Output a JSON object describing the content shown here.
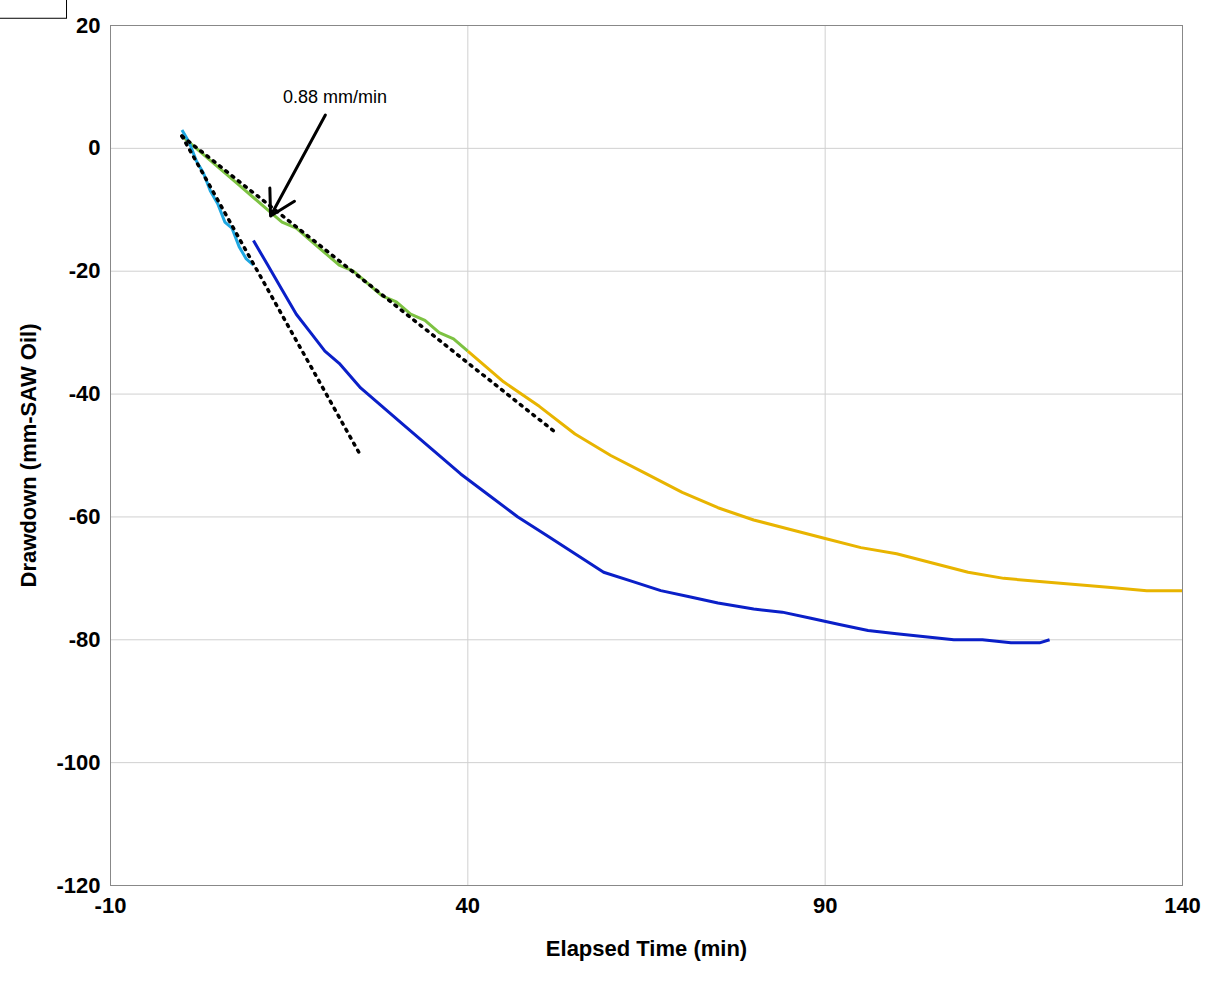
{
  "chart_data": {
    "type": "line",
    "x_label": "Elapsed Time (min)",
    "y_label": "Drawdown (mm-SAW Oil)",
    "xlim": [
      -10,
      140
    ],
    "xticks": [
      -10,
      40,
      90,
      140
    ],
    "ylim": [
      -120,
      20
    ],
    "yticks": [
      -120,
      -100,
      -80,
      -60,
      -40,
      -20,
      0,
      20
    ],
    "grid": true,
    "series": [
      {
        "color": "#7dc242",
        "line_style": "solid",
        "x": [
          0,
          2,
          4,
          6,
          8,
          10,
          12,
          14,
          16,
          18,
          20,
          22,
          24,
          26,
          28,
          30,
          32,
          34,
          36,
          38,
          40
        ],
        "values": [
          2,
          0,
          -2,
          -4,
          -6,
          -8,
          -10,
          -12,
          -13,
          -15,
          -17,
          -19,
          -20,
          -22,
          -24,
          -25,
          -27,
          -28,
          -30,
          -31,
          -33
        ]
      },
      {
        "color": "#e8b400",
        "line_style": "solid",
        "x": [
          40,
          45,
          50,
          55,
          60,
          65,
          70,
          75,
          80,
          85,
          90,
          95,
          100,
          105,
          110,
          115,
          120,
          125,
          130,
          135,
          140
        ],
        "values": [
          -33,
          -38,
          -42,
          -46.5,
          -50,
          -53,
          -56,
          -58.5,
          -60.5,
          -62,
          -63.5,
          -65,
          -66,
          -67.5,
          -69,
          -70,
          -70.5,
          -71,
          -71.5,
          -72,
          -72
        ]
      },
      {
        "color": "#1ea7e1",
        "line_style": "solid",
        "x": [
          0,
          1,
          2,
          3,
          4,
          5,
          6,
          7,
          8,
          9,
          10
        ],
        "values": [
          3,
          1,
          -2,
          -4,
          -7,
          -9,
          -12,
          -13,
          -16,
          -18,
          -19
        ]
      },
      {
        "color": "#0a1fc8",
        "line_style": "solid",
        "x": [
          10,
          12,
          14,
          16,
          18,
          20,
          22,
          25,
          28,
          31,
          35,
          39,
          43,
          47,
          51,
          55,
          59,
          63,
          67,
          71,
          75,
          80,
          84,
          88,
          92,
          96,
          100,
          104,
          108,
          112,
          116,
          120,
          121.4
        ],
        "values": [
          -15,
          -19,
          -23,
          -27,
          -30,
          -33,
          -35,
          -39,
          -42,
          -45,
          -49,
          -53,
          -56.5,
          -60,
          -63,
          -66,
          -69,
          -70.5,
          -72,
          -73,
          -74,
          -75,
          -75.5,
          -76.5,
          -77.5,
          -78.5,
          -79,
          -79.5,
          -80,
          -80,
          -80.5,
          -80.5,
          -80
        ]
      },
      {
        "color": "#000000",
        "line_style": "dotted",
        "x": [
          0,
          52
        ],
        "values": [
          2,
          -46
        ]
      },
      {
        "color": "#000000",
        "line_style": "dotted",
        "x": [
          0,
          25
        ],
        "values": [
          2,
          -50
        ]
      }
    ],
    "annotations": [
      {
        "text": "0.88 mm/min",
        "x": 21.4,
        "y": 8.3,
        "arrow_to": [
          12.4,
          -11
        ]
      }
    ]
  }
}
